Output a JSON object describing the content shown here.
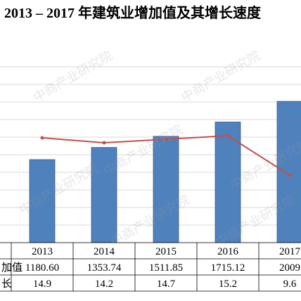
{
  "title": "2013 – 2017 年建筑业增加值及其增长速度",
  "watermark": "中商产业研究院",
  "colors": {
    "bar": "#4f81bd",
    "bar_border": "#385d8a",
    "line": "#c0504d",
    "grid": "#d9d9d9"
  },
  "chart_data": {
    "type": "bar",
    "categories": [
      "2013",
      "2014",
      "2015",
      "2016",
      "2017"
    ],
    "series": [
      {
        "name": "增加值",
        "type": "bar",
        "values": [
          1180.6,
          1353.74,
          1511.85,
          1715.12,
          2009
        ]
      },
      {
        "name": "增长",
        "type": "line",
        "values": [
          14.9,
          14.2,
          14.7,
          15.2,
          9.6
        ]
      }
    ],
    "table": {
      "row_labels": [
        "加值",
        "长"
      ],
      "rows": [
        [
          "1180.60",
          "1353.74",
          "1511.85",
          "1715.12",
          "2009"
        ],
        [
          "14.9",
          "14.2",
          "14.7",
          "15.2",
          "9.6"
        ]
      ]
    },
    "ylim": [
      0,
      2500
    ],
    "y2lim": [
      0,
      25
    ],
    "grid": true
  }
}
